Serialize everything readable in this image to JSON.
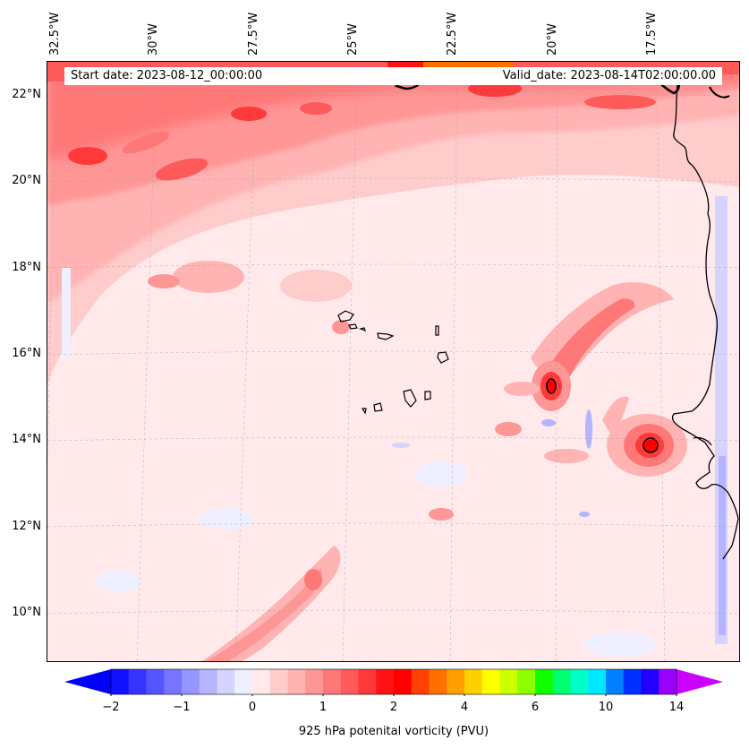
{
  "map": {
    "start_date": "Start date: 2023-08-12_00:00:00",
    "valid_date": "Valid_date: 2023-08-14T02:00:00.00",
    "lon_labels": [
      "32.5°W",
      "30°W",
      "27.5°W",
      "25°W",
      "22.5°W",
      "20°W",
      "17.5°W"
    ],
    "lat_labels": [
      "22°N",
      "20°N",
      "18°N",
      "16°N",
      "14°N",
      "12°N",
      "10°N"
    ]
  },
  "colorbar": {
    "title": "925 hPa potenital vorticity (PVU)",
    "tick_labels": [
      "−2",
      "−1",
      "0",
      "1",
      "2",
      "4",
      "6",
      "10",
      "14"
    ],
    "colors": [
      "#1010ff",
      "#3535ff",
      "#5555ff",
      "#7575ff",
      "#9595ff",
      "#b4b4ff",
      "#d4d4ff",
      "#efefff",
      "#ffe9ea",
      "#ffcccc",
      "#ffb3b3",
      "#ff9696",
      "#ff7878",
      "#ff5a5a",
      "#ff3838",
      "#ff1212",
      "#ff0000",
      "#ff4000",
      "#ff7000",
      "#ffa000",
      "#ffd000",
      "#ffff00",
      "#ccff00",
      "#8eff00",
      "#10ff00",
      "#00ff70",
      "#00ffc8",
      "#00e8ff",
      "#0080ff",
      "#0030ff",
      "#2000ff",
      "#9a00ff"
    ],
    "under_color": "#0000ff",
    "over_color": "#cc00ff"
  }
}
